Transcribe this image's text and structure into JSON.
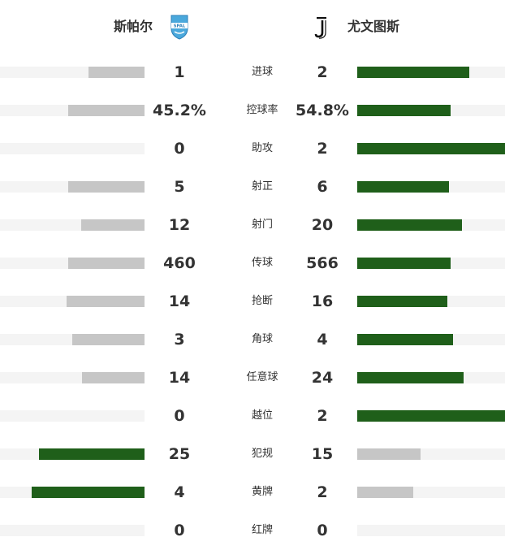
{
  "teams": {
    "home": {
      "name": "斯帕尔",
      "logo_icon": "spal-crest-icon",
      "logo_text": "SPAL"
    },
    "away": {
      "name": "尤文图斯",
      "logo_icon": "juventus-j-icon"
    }
  },
  "colors": {
    "track": "#f4f4f4",
    "bar_grey": "#c6c6c6",
    "bar_green": "#1f5f1a"
  },
  "stats": [
    {
      "label": "进球",
      "home": "1",
      "away": "2",
      "home_frac": 0.39,
      "away_frac": 0.76,
      "home_color": "grey",
      "away_color": "green"
    },
    {
      "label": "控球率",
      "home": "45.2%",
      "away": "54.8%",
      "home_frac": 0.53,
      "away_frac": 0.63,
      "home_color": "grey",
      "away_color": "green"
    },
    {
      "label": "助攻",
      "home": "0",
      "away": "2",
      "home_frac": 0.0,
      "away_frac": 1.0,
      "home_color": "grey",
      "away_color": "green"
    },
    {
      "label": "射正",
      "home": "5",
      "away": "6",
      "home_frac": 0.53,
      "away_frac": 0.62,
      "home_color": "grey",
      "away_color": "green"
    },
    {
      "label": "射门",
      "home": "12",
      "away": "20",
      "home_frac": 0.44,
      "away_frac": 0.71,
      "home_color": "grey",
      "away_color": "green"
    },
    {
      "label": "传球",
      "home": "460",
      "away": "566",
      "home_frac": 0.53,
      "away_frac": 0.63,
      "home_color": "grey",
      "away_color": "green"
    },
    {
      "label": "抢断",
      "home": "14",
      "away": "16",
      "home_frac": 0.54,
      "away_frac": 0.61,
      "home_color": "grey",
      "away_color": "green"
    },
    {
      "label": "角球",
      "home": "3",
      "away": "4",
      "home_frac": 0.5,
      "away_frac": 0.65,
      "home_color": "grey",
      "away_color": "green"
    },
    {
      "label": "任意球",
      "home": "14",
      "away": "24",
      "home_frac": 0.43,
      "away_frac": 0.72,
      "home_color": "grey",
      "away_color": "green"
    },
    {
      "label": "越位",
      "home": "0",
      "away": "2",
      "home_frac": 0.0,
      "away_frac": 1.0,
      "home_color": "grey",
      "away_color": "green"
    },
    {
      "label": "犯规",
      "home": "25",
      "away": "15",
      "home_frac": 0.73,
      "away_frac": 0.43,
      "home_color": "green",
      "away_color": "grey"
    },
    {
      "label": "黄牌",
      "home": "4",
      "away": "2",
      "home_frac": 0.78,
      "away_frac": 0.38,
      "home_color": "green",
      "away_color": "grey"
    },
    {
      "label": "红牌",
      "home": "0",
      "away": "0",
      "home_frac": 0.0,
      "away_frac": 0.0,
      "home_color": "grey",
      "away_color": "grey"
    }
  ]
}
